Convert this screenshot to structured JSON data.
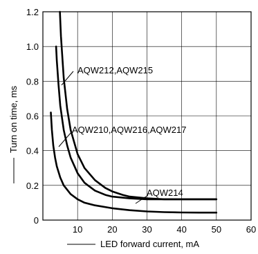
{
  "chart_data": {
    "type": "line",
    "title": "",
    "xlabel": "LED forward current, mA",
    "ylabel": "Turn on time, ms",
    "xlim": [
      0,
      60
    ],
    "ylim": [
      0,
      1.2
    ],
    "x_ticks": [
      "10",
      "20",
      "30",
      "40",
      "50",
      "60"
    ],
    "y_ticks": [
      "0",
      "0.2",
      "0.4",
      "0.6",
      "0.8",
      "1.0",
      "1.2"
    ],
    "x_tick_values": [
      10,
      20,
      30,
      40,
      50,
      60
    ],
    "y_tick_values": [
      0,
      0.2,
      0.4,
      0.6,
      0.8,
      1.0,
      1.2
    ],
    "grid": true,
    "series": [
      {
        "name": "AQW212,AQW215",
        "x": [
          4.9,
          5.2,
          6,
          7,
          8,
          10,
          12,
          15,
          18,
          20,
          23,
          25,
          30,
          35,
          40,
          45,
          50
        ],
        "y": [
          1.2,
          1.06,
          0.82,
          0.64,
          0.52,
          0.38,
          0.3,
          0.23,
          0.185,
          0.165,
          0.145,
          0.135,
          0.125,
          0.12,
          0.12,
          0.12,
          0.12
        ]
      },
      {
        "name": "AQW210,AQW216,AQW217",
        "x": [
          3.8,
          4,
          4.5,
          5,
          6,
          7,
          8,
          10,
          12,
          15,
          18,
          20,
          25,
          30,
          35,
          40,
          45,
          50
        ],
        "y": [
          1.0,
          0.92,
          0.78,
          0.66,
          0.52,
          0.43,
          0.36,
          0.27,
          0.215,
          0.17,
          0.145,
          0.135,
          0.125,
          0.12,
          0.12,
          0.12,
          0.12,
          0.12
        ]
      },
      {
        "name": "AQW214",
        "x": [
          2.3,
          2.6,
          3,
          3.5,
          4,
          5,
          6,
          8,
          10,
          12,
          15,
          20,
          25,
          30,
          35,
          40,
          45,
          50
        ],
        "y": [
          0.62,
          0.52,
          0.43,
          0.36,
          0.31,
          0.245,
          0.2,
          0.15,
          0.12,
          0.1,
          0.085,
          0.068,
          0.057,
          0.05,
          0.046,
          0.044,
          0.043,
          0.043
        ]
      }
    ],
    "annotations": [
      {
        "text": "AQW212,AQW215"
      },
      {
        "text": "AQW210,AQW216,AQW217"
      },
      {
        "text": "AQW214"
      }
    ]
  }
}
